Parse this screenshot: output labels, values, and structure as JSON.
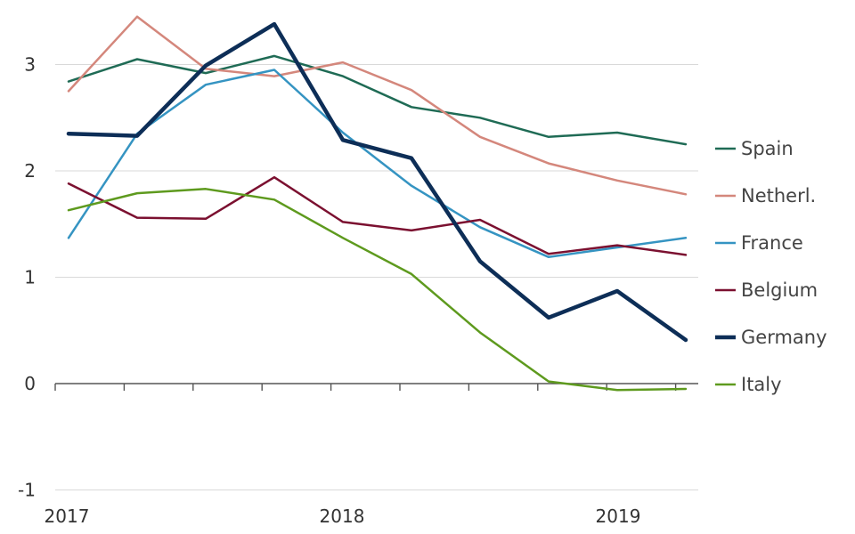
{
  "chart_data": {
    "type": "line",
    "title": "",
    "xlabel": "",
    "ylabel": "",
    "x": [
      2017.0,
      2017.25,
      2017.5,
      2017.75,
      2018.0,
      2018.25,
      2018.5,
      2018.75,
      2019.0,
      2019.25
    ],
    "xlim": [
      2017.0,
      2019.25
    ],
    "ylim": [
      -1,
      3.45
    ],
    "yticks": [
      -1,
      0,
      1,
      2,
      3
    ],
    "ytick_labels": [
      "-1",
      "0",
      "1",
      "2",
      "3"
    ],
    "xticks": [
      2017,
      2018,
      2019
    ],
    "xtick_labels": [
      "2017",
      "2018",
      "2019"
    ],
    "grid": true,
    "legend_position": "right",
    "series": [
      {
        "name": "Spain",
        "color": "#1f6b55",
        "width": 2.5,
        "values": [
          2.84,
          3.05,
          2.92,
          3.08,
          2.89,
          2.6,
          2.5,
          2.32,
          2.36,
          2.25
        ]
      },
      {
        "name": "Netherl.",
        "color": "#d4877c",
        "width": 2.5,
        "values": [
          2.75,
          3.45,
          2.96,
          2.89,
          3.02,
          2.76,
          2.32,
          2.07,
          1.91,
          1.78
        ]
      },
      {
        "name": "France",
        "color": "#3594c2",
        "width": 2.5,
        "values": [
          1.37,
          2.35,
          2.81,
          2.95,
          2.36,
          1.86,
          1.47,
          1.19,
          1.28,
          1.37
        ]
      },
      {
        "name": "Belgium",
        "color": "#7b1030",
        "width": 2.5,
        "values": [
          1.88,
          1.56,
          1.55,
          1.94,
          1.52,
          1.44,
          1.54,
          1.22,
          1.3,
          1.21
        ]
      },
      {
        "name": "Germany",
        "color": "#0d2e57",
        "width": 4.5,
        "values": [
          2.35,
          2.33,
          2.99,
          3.38,
          2.29,
          2.12,
          1.15,
          0.62,
          0.87,
          0.41
        ]
      },
      {
        "name": "Italy",
        "color": "#5e9a1e",
        "width": 2.5,
        "values": [
          1.63,
          1.79,
          1.83,
          1.73,
          1.37,
          1.03,
          0.48,
          0.02,
          -0.06,
          -0.05
        ]
      }
    ]
  }
}
